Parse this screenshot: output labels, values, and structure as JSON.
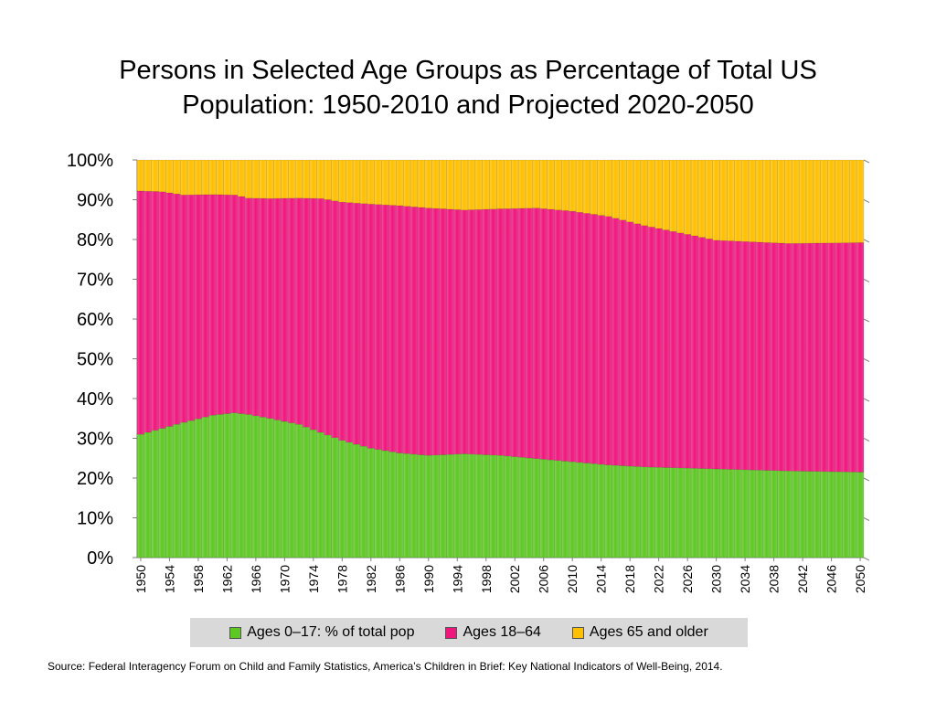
{
  "chart_data": {
    "type": "bar",
    "stacked": true,
    "title_lines": [
      "Persons in Selected Age Groups as Percentage of Total US",
      "Population: 1950-2010 and Projected 2020-2050"
    ],
    "ylim": [
      0,
      100
    ],
    "y_ticks": [
      "0%",
      "10%",
      "20%",
      "30%",
      "40%",
      "50%",
      "60%",
      "70%",
      "80%",
      "90%",
      "100%"
    ],
    "x_range": [
      1950,
      2050
    ],
    "x_ticks": [
      "1950",
      "1954",
      "1958",
      "1962",
      "1966",
      "1970",
      "1974",
      "1978",
      "1982",
      "1986",
      "1990",
      "1994",
      "1998",
      "2002",
      "2006",
      "2010",
      "2014",
      "2018",
      "2022",
      "2026",
      "2030",
      "2034",
      "2038",
      "2042",
      "2046",
      "2050"
    ],
    "series": [
      {
        "name": "Ages 0–17: % of total pop",
        "color": "#5ec823",
        "keypoints": [
          [
            1950,
            31
          ],
          [
            1953,
            32.5
          ],
          [
            1956,
            34
          ],
          [
            1960,
            35.8
          ],
          [
            1963,
            36.4
          ],
          [
            1965,
            36
          ],
          [
            1968,
            35
          ],
          [
            1972,
            33.5
          ],
          [
            1975,
            31.5
          ],
          [
            1978,
            29.5
          ],
          [
            1982,
            27.5
          ],
          [
            1986,
            26.3
          ],
          [
            1990,
            25.7
          ],
          [
            1995,
            26.1
          ],
          [
            2000,
            25.7
          ],
          [
            2005,
            24.9
          ],
          [
            2010,
            24.1
          ],
          [
            2015,
            23.3
          ],
          [
            2020,
            22.8
          ],
          [
            2030,
            22.3
          ],
          [
            2040,
            21.8
          ],
          [
            2050,
            21.5
          ]
        ]
      },
      {
        "name": "Ages 18–64",
        "color": "#f0167e",
        "keypoints": [
          [
            1950,
            61.2
          ],
          [
            1953,
            59.5
          ],
          [
            1956,
            57.2
          ],
          [
            1960,
            55.5
          ],
          [
            1963,
            54.8
          ],
          [
            1965,
            54.4
          ],
          [
            1968,
            55.3
          ],
          [
            1972,
            56.9
          ],
          [
            1975,
            58.8
          ],
          [
            1978,
            59.9
          ],
          [
            1982,
            61.4
          ],
          [
            1986,
            62.2
          ],
          [
            1990,
            62.2
          ],
          [
            1995,
            61.3
          ],
          [
            2000,
            62
          ],
          [
            2005,
            63
          ],
          [
            2010,
            63
          ],
          [
            2015,
            62.5
          ],
          [
            2020,
            60.7
          ],
          [
            2030,
            57.5
          ],
          [
            2040,
            57.2
          ],
          [
            2050,
            57.7
          ]
        ]
      },
      {
        "name": "Ages 65 and older",
        "color": "#ffc000",
        "keypoints": [
          [
            1950,
            7.8
          ],
          [
            1953,
            8
          ],
          [
            1956,
            8.8
          ],
          [
            1960,
            8.7
          ],
          [
            1963,
            8.8
          ],
          [
            1965,
            9.6
          ],
          [
            1968,
            9.7
          ],
          [
            1972,
            9.6
          ],
          [
            1975,
            9.7
          ],
          [
            1978,
            10.6
          ],
          [
            1982,
            11.1
          ],
          [
            1986,
            11.5
          ],
          [
            1990,
            12.1
          ],
          [
            1995,
            12.6
          ],
          [
            2000,
            12.3
          ],
          [
            2005,
            12.1
          ],
          [
            2010,
            12.9
          ],
          [
            2015,
            14.2
          ],
          [
            2020,
            16.5
          ],
          [
            2030,
            20.2
          ],
          [
            2040,
            21
          ],
          [
            2050,
            20.8
          ]
        ]
      }
    ]
  },
  "source_text": "Source:  Federal Interagency Forum on Child and Family Statistics, America’s Children in Brief: Key National Indicators of Well-Being, 2014."
}
